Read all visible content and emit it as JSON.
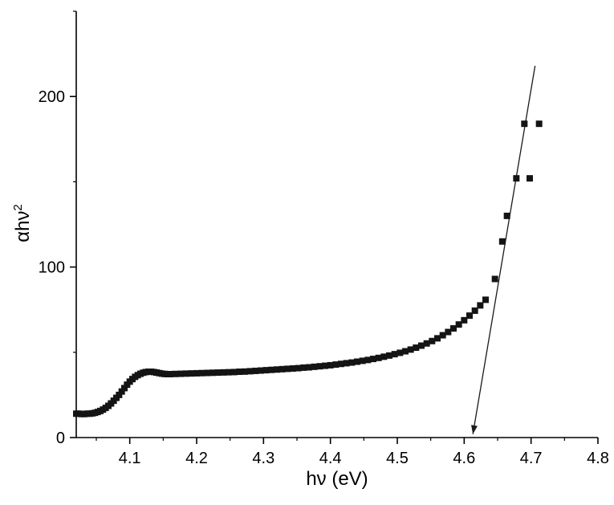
{
  "figure": {
    "background": "#ffffff",
    "axis_color": "#000000",
    "marker_color": "#141414",
    "line_color": "#1a1a1a"
  },
  "chart_data": {
    "type": "scatter",
    "title": "",
    "xlabel": "hν (eV)",
    "ylabel": "αhν",
    "ylabel_sup": "2",
    "xlim": [
      4.02,
      4.8
    ],
    "ylim": [
      0,
      250
    ],
    "grid": false,
    "legend": "none",
    "x_ticks": [
      4.1,
      4.2,
      4.3,
      4.4,
      4.5,
      4.6,
      4.7,
      4.8
    ],
    "x_tick_labels": [
      "4.1",
      "4.2",
      "4.3",
      "4.4",
      "4.5",
      "4.6",
      "4.7",
      "4.8"
    ],
    "x_minor_ticks": [
      4.05,
      4.15,
      4.25,
      4.35,
      4.45,
      4.55,
      4.65,
      4.75
    ],
    "y_ticks": [
      0,
      100,
      200
    ],
    "y_tick_labels": [
      "0",
      "100",
      "200"
    ],
    "y_minor_ticks": [
      50,
      150,
      250
    ],
    "marker": {
      "shape": "square",
      "size": 8
    },
    "fit_line": {
      "x1": 4.613,
      "y1": 2,
      "x2": 4.706,
      "y2": 218,
      "arrow_at": "start"
    },
    "points": [
      [
        4.02,
        14
      ],
      [
        4.024,
        14
      ],
      [
        4.028,
        13.8
      ],
      [
        4.032,
        13.8
      ],
      [
        4.036,
        14
      ],
      [
        4.04,
        14
      ],
      [
        4.044,
        14.2
      ],
      [
        4.048,
        14.5
      ],
      [
        4.052,
        15
      ],
      [
        4.056,
        15.6
      ],
      [
        4.06,
        16.4
      ],
      [
        4.064,
        17.4
      ],
      [
        4.068,
        18.6
      ],
      [
        4.072,
        20
      ],
      [
        4.076,
        21.6
      ],
      [
        4.08,
        23.3
      ],
      [
        4.084,
        25
      ],
      [
        4.088,
        27
      ],
      [
        4.092,
        29
      ],
      [
        4.096,
        31
      ],
      [
        4.1,
        32.8
      ],
      [
        4.104,
        34.3
      ],
      [
        4.108,
        35.6
      ],
      [
        4.112,
        36.6
      ],
      [
        4.116,
        37.4
      ],
      [
        4.12,
        38
      ],
      [
        4.124,
        38.4
      ],
      [
        4.128,
        38.6
      ],
      [
        4.132,
        38.6
      ],
      [
        4.136,
        38.4
      ],
      [
        4.14,
        38.1
      ],
      [
        4.144,
        37.8
      ],
      [
        4.148,
        37.5
      ],
      [
        4.152,
        37.3
      ],
      [
        4.156,
        37.2
      ],
      [
        4.16,
        37.2
      ],
      [
        4.168,
        37.3
      ],
      [
        4.176,
        37.4
      ],
      [
        4.184,
        37.5
      ],
      [
        4.192,
        37.6
      ],
      [
        4.2,
        37.7
      ],
      [
        4.208,
        37.8
      ],
      [
        4.216,
        37.9
      ],
      [
        4.224,
        38.0
      ],
      [
        4.232,
        38.1
      ],
      [
        4.24,
        38.2
      ],
      [
        4.248,
        38.3
      ],
      [
        4.256,
        38.4
      ],
      [
        4.264,
        38.6
      ],
      [
        4.272,
        38.7
      ],
      [
        4.28,
        38.9
      ],
      [
        4.288,
        39.1
      ],
      [
        4.296,
        39.3
      ],
      [
        4.304,
        39.5
      ],
      [
        4.312,
        39.7
      ],
      [
        4.32,
        39.9
      ],
      [
        4.328,
        40.1
      ],
      [
        4.336,
        40.3
      ],
      [
        4.344,
        40.5
      ],
      [
        4.352,
        40.7
      ],
      [
        4.36,
        41.0
      ],
      [
        4.368,
        41.2
      ],
      [
        4.376,
        41.5
      ],
      [
        4.384,
        41.8
      ],
      [
        4.392,
        42.1
      ],
      [
        4.4,
        42.4
      ],
      [
        4.408,
        42.8
      ],
      [
        4.416,
        43.2
      ],
      [
        4.424,
        43.6
      ],
      [
        4.432,
        44.0
      ],
      [
        4.44,
        44.5
      ],
      [
        4.448,
        45.0
      ],
      [
        4.456,
        45.5
      ],
      [
        4.464,
        46.1
      ],
      [
        4.472,
        46.7
      ],
      [
        4.48,
        47.4
      ],
      [
        4.488,
        48.1
      ],
      [
        4.496,
        48.9
      ],
      [
        4.504,
        49.7
      ],
      [
        4.512,
        50.6
      ],
      [
        4.52,
        51.6
      ],
      [
        4.528,
        52.7
      ],
      [
        4.536,
        53.9
      ],
      [
        4.544,
        55.2
      ],
      [
        4.552,
        56.6
      ],
      [
        4.56,
        58.2
      ],
      [
        4.568,
        60.0
      ],
      [
        4.576,
        61.9
      ],
      [
        4.584,
        64.0
      ],
      [
        4.592,
        66.3
      ],
      [
        4.6,
        68.8
      ],
      [
        4.608,
        71.5
      ],
      [
        4.616,
        74.4
      ],
      [
        4.624,
        77.5
      ],
      [
        4.632,
        80.8
      ],
      [
        4.646,
        93
      ],
      [
        4.657,
        115
      ],
      [
        4.664,
        130
      ],
      [
        4.678,
        152
      ],
      [
        4.698,
        152
      ],
      [
        4.69,
        184
      ],
      [
        4.712,
        184
      ]
    ]
  }
}
